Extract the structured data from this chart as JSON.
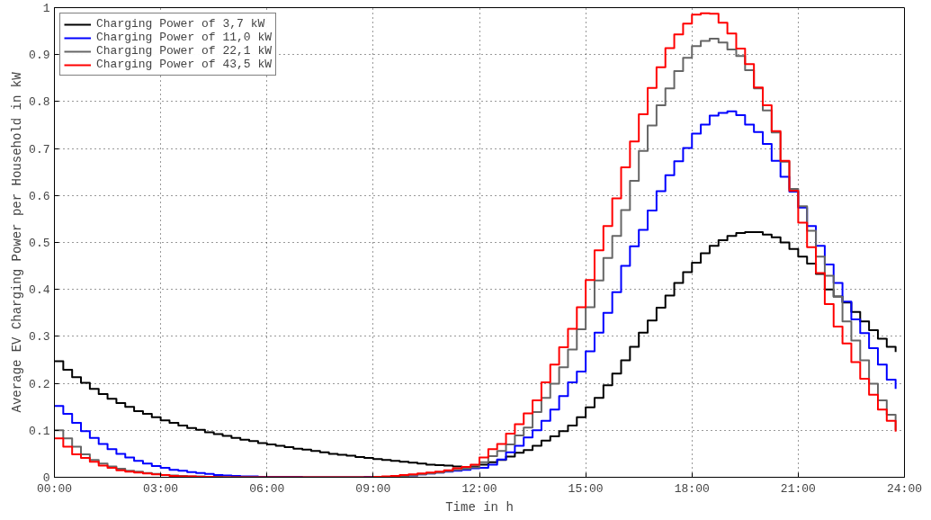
{
  "chart_data": {
    "type": "step",
    "xlabel": "Time in h",
    "ylabel": "Average EV Charging Power per Household in kW",
    "x": [
      0,
      0.25,
      0.5,
      0.75,
      1,
      1.25,
      1.5,
      1.75,
      2,
      2.25,
      2.5,
      2.75,
      3,
      3.25,
      3.5,
      3.75,
      4,
      4.25,
      4.5,
      4.75,
      5,
      5.25,
      5.5,
      5.75,
      6,
      6.25,
      6.5,
      6.75,
      7,
      7.25,
      7.5,
      7.75,
      8,
      8.25,
      8.5,
      8.75,
      9,
      9.25,
      9.5,
      9.75,
      10,
      10.25,
      10.5,
      10.75,
      11,
      11.25,
      11.5,
      11.75,
      12,
      12.25,
      12.5,
      12.75,
      13,
      13.25,
      13.5,
      13.75,
      14,
      14.25,
      14.5,
      14.75,
      15,
      15.25,
      15.5,
      15.75,
      16,
      16.25,
      16.5,
      16.75,
      17,
      17.25,
      17.5,
      17.75,
      18,
      18.25,
      18.5,
      18.75,
      19,
      19.25,
      19.5,
      19.75,
      20,
      20.25,
      20.5,
      20.75,
      21,
      21.25,
      21.5,
      21.75,
      22,
      22.25,
      22.5,
      22.75,
      23,
      23.25,
      23.5,
      23.75
    ],
    "xlim": [
      0,
      24
    ],
    "xticks": [
      {
        "value": 0,
        "label": "00:00"
      },
      {
        "value": 3,
        "label": "03:00"
      },
      {
        "value": 6,
        "label": "06:00"
      },
      {
        "value": 9,
        "label": "09:00"
      },
      {
        "value": 12,
        "label": "12:00"
      },
      {
        "value": 15,
        "label": "15:00"
      },
      {
        "value": 18,
        "label": "18:00"
      },
      {
        "value": 21,
        "label": "21:00"
      },
      {
        "value": 24,
        "label": "24:00"
      }
    ],
    "ylim": [
      0,
      1
    ],
    "yticks": [
      0,
      0.1,
      0.2,
      0.3,
      0.4,
      0.5,
      0.6,
      0.7,
      0.8,
      0.9,
      1
    ],
    "grid": true,
    "legend": "top left",
    "line_style": "solid",
    "series": [
      {
        "name": "Charging Power of 3,7 kW",
        "color": "#000000",
        "values": [
          0.247,
          0.229,
          0.213,
          0.201,
          0.188,
          0.177,
          0.167,
          0.158,
          0.15,
          0.141,
          0.135,
          0.128,
          0.121,
          0.116,
          0.11,
          0.105,
          0.101,
          0.096,
          0.092,
          0.088,
          0.084,
          0.08,
          0.077,
          0.073,
          0.07,
          0.067,
          0.064,
          0.061,
          0.059,
          0.056,
          0.053,
          0.05,
          0.048,
          0.046,
          0.043,
          0.041,
          0.039,
          0.037,
          0.035,
          0.033,
          0.031,
          0.029,
          0.027,
          0.026,
          0.025,
          0.023,
          0.022,
          0.023,
          0.027,
          0.032,
          0.037,
          0.044,
          0.052,
          0.058,
          0.067,
          0.078,
          0.087,
          0.098,
          0.11,
          0.128,
          0.149,
          0.169,
          0.196,
          0.221,
          0.249,
          0.278,
          0.308,
          0.334,
          0.361,
          0.387,
          0.414,
          0.437,
          0.457,
          0.477,
          0.493,
          0.505,
          0.514,
          0.52,
          0.522,
          0.522,
          0.517,
          0.511,
          0.5,
          0.486,
          0.47,
          0.455,
          0.433,
          0.4,
          0.385,
          0.372,
          0.352,
          0.332,
          0.313,
          0.295,
          0.278,
          0.267
        ]
      },
      {
        "name": "Charging Power of 11,0 kW",
        "color": "#0000ff",
        "values": [
          0.152,
          0.135,
          0.116,
          0.098,
          0.084,
          0.071,
          0.06,
          0.05,
          0.042,
          0.035,
          0.029,
          0.024,
          0.02,
          0.016,
          0.014,
          0.011,
          0.009,
          0.007,
          0.005,
          0.004,
          0.003,
          0.002,
          0.002,
          0.001,
          0.001,
          0.001,
          0.001,
          0.001,
          0,
          0,
          0,
          0,
          0,
          0,
          0,
          0.001,
          0.001,
          0.001,
          0.002,
          0.003,
          0.004,
          0.006,
          0.008,
          0.01,
          0.012,
          0.014,
          0.016,
          0.019,
          0.02,
          0.027,
          0.038,
          0.053,
          0.067,
          0.085,
          0.1,
          0.12,
          0.144,
          0.173,
          0.202,
          0.225,
          0.268,
          0.308,
          0.35,
          0.394,
          0.45,
          0.492,
          0.527,
          0.568,
          0.609,
          0.643,
          0.673,
          0.701,
          0.732,
          0.751,
          0.77,
          0.776,
          0.779,
          0.771,
          0.751,
          0.735,
          0.71,
          0.674,
          0.64,
          0.608,
          0.574,
          0.535,
          0.493,
          0.453,
          0.414,
          0.374,
          0.336,
          0.307,
          0.275,
          0.24,
          0.208,
          0.188
        ]
      },
      {
        "name": "Charging Power of 22,1 kW",
        "color": "#666666",
        "values": [
          0.1,
          0.083,
          0.065,
          0.049,
          0.037,
          0.029,
          0.023,
          0.018,
          0.014,
          0.012,
          0.009,
          0.007,
          0.005,
          0.004,
          0.003,
          0.002,
          0.002,
          0.001,
          0.001,
          0,
          0,
          0,
          0,
          0,
          0,
          0,
          0,
          0,
          0,
          0,
          0,
          0,
          0,
          0,
          0,
          0,
          0.001,
          0.001,
          0.002,
          0.003,
          0.004,
          0.006,
          0.008,
          0.01,
          0.013,
          0.016,
          0.018,
          0.021,
          0.032,
          0.045,
          0.056,
          0.07,
          0.089,
          0.106,
          0.139,
          0.169,
          0.199,
          0.234,
          0.272,
          0.315,
          0.362,
          0.419,
          0.467,
          0.514,
          0.569,
          0.631,
          0.695,
          0.749,
          0.792,
          0.828,
          0.865,
          0.893,
          0.918,
          0.929,
          0.934,
          0.926,
          0.911,
          0.897,
          0.867,
          0.828,
          0.781,
          0.734,
          0.672,
          0.614,
          0.577,
          0.525,
          0.47,
          0.429,
          0.384,
          0.332,
          0.291,
          0.249,
          0.199,
          0.164,
          0.133,
          0.1
        ]
      },
      {
        "name": "Charging Power of 43,5 kW",
        "color": "#ff0000",
        "values": [
          0.083,
          0.065,
          0.049,
          0.041,
          0.033,
          0.025,
          0.02,
          0.015,
          0.012,
          0.01,
          0.008,
          0.006,
          0.005,
          0.003,
          0.002,
          0.002,
          0.001,
          0.001,
          0,
          0,
          0,
          0,
          0,
          0,
          0,
          0,
          0,
          0,
          0,
          0,
          0,
          0,
          0,
          0,
          0,
          0,
          0.001,
          0.002,
          0.003,
          0.005,
          0.006,
          0.008,
          0.01,
          0.012,
          0.015,
          0.019,
          0.022,
          0.027,
          0.042,
          0.06,
          0.071,
          0.093,
          0.113,
          0.136,
          0.164,
          0.202,
          0.24,
          0.277,
          0.316,
          0.362,
          0.42,
          0.483,
          0.535,
          0.594,
          0.66,
          0.715,
          0.773,
          0.829,
          0.873,
          0.914,
          0.943,
          0.966,
          0.985,
          0.988,
          0.987,
          0.968,
          0.945,
          0.913,
          0.88,
          0.83,
          0.792,
          0.737,
          0.674,
          0.61,
          0.542,
          0.49,
          0.435,
          0.369,
          0.321,
          0.285,
          0.245,
          0.21,
          0.176,
          0.144,
          0.12,
          0.097
        ]
      }
    ]
  }
}
